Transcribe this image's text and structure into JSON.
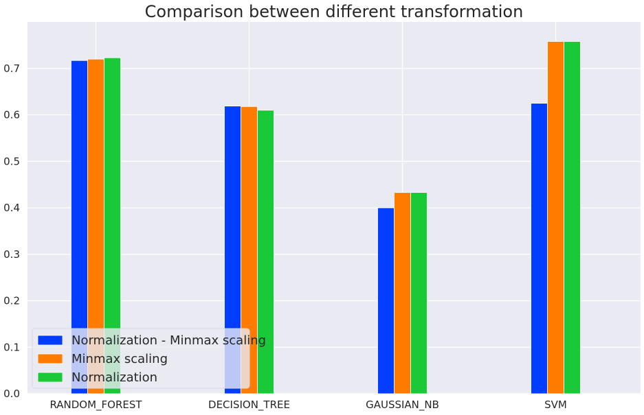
{
  "chart_data": {
    "type": "bar",
    "title": "Comparison between different transformation",
    "xlabel": "",
    "ylabel": "",
    "categories": [
      "RANDOM_FOREST",
      "DECISION_TREE",
      "GAUSSIAN_NB",
      "SVM"
    ],
    "series": [
      {
        "name": "Normalization - Minmax scaling",
        "color": "#023EFF",
        "values": [
          0.717,
          0.619,
          0.4,
          0.625
        ]
      },
      {
        "name": "Minmax scaling",
        "color": "#FF7C00",
        "values": [
          0.72,
          0.618,
          0.433,
          0.758
        ]
      },
      {
        "name": "Normalization",
        "color": "#1AC938",
        "values": [
          0.723,
          0.61,
          0.433,
          0.758
        ]
      }
    ],
    "ylim": [
      0,
      0.8
    ],
    "yticks": [
      "0.0",
      "0.1",
      "0.2",
      "0.3",
      "0.4",
      "0.5",
      "0.6",
      "0.7"
    ],
    "grid": true,
    "legend_position": "bottom-left",
    "background": "#EAEAF2"
  }
}
